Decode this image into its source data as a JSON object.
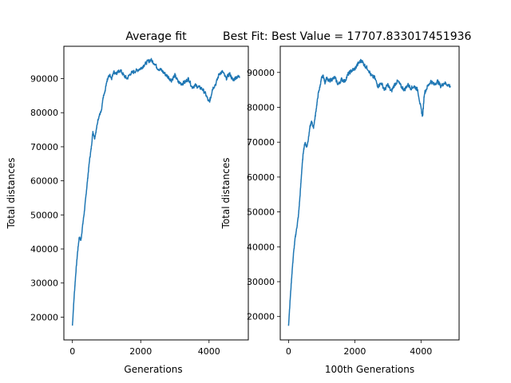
{
  "chart_data": [
    {
      "type": "line",
      "title": "Average fit",
      "xlabel": "Generations",
      "ylabel": "Total distances",
      "xlim": [
        -250,
        5150
      ],
      "ylim": [
        13300,
        99500
      ],
      "xticks": [
        0,
        2000,
        4000
      ],
      "xtick_labels": [
        "0",
        "2000",
        "4000"
      ],
      "yticks": [
        20000,
        30000,
        40000,
        50000,
        60000,
        70000,
        80000,
        90000
      ],
      "ytick_labels": [
        "20000",
        "30000",
        "40000",
        "50000",
        "60000",
        "70000",
        "80000",
        "90000"
      ],
      "grid": false,
      "series": [
        {
          "color": "#1f77b4",
          "x": [
            0,
            50,
            100,
            150,
            200,
            250,
            300,
            350,
            400,
            450,
            500,
            550,
            600,
            650,
            700,
            750,
            800,
            850,
            900,
            950,
            1000,
            1050,
            1100,
            1150,
            1200,
            1300,
            1400,
            1500,
            1600,
            1700,
            1800,
            1900,
            2000,
            2100,
            2200,
            2300,
            2400,
            2500,
            2600,
            2700,
            2800,
            2900,
            3000,
            3100,
            3200,
            3300,
            3400,
            3500,
            3600,
            3700,
            3800,
            3900,
            4000,
            4050,
            4100,
            4200,
            4300,
            4400,
            4500,
            4600,
            4700,
            4800,
            4900
          ],
          "y": [
            17500,
            26000,
            33000,
            39000,
            43500,
            42500,
            47000,
            51000,
            56000,
            61000,
            66000,
            69500,
            74500,
            72500,
            75000,
            78000,
            79500,
            80500,
            84500,
            86000,
            89000,
            90500,
            91000,
            90000,
            92000,
            91500,
            92500,
            91000,
            90000,
            91500,
            92000,
            92500,
            93000,
            94000,
            95000,
            95500,
            94500,
            93000,
            92500,
            91500,
            90500,
            89500,
            91000,
            89000,
            88500,
            89000,
            90000,
            87500,
            88000,
            87500,
            87000,
            85500,
            83000,
            84500,
            87000,
            88500,
            91500,
            92000,
            90000,
            91500,
            89500,
            90500,
            90500
          ]
        }
      ]
    },
    {
      "type": "line",
      "title": "Best Fit: Best Value = 17707.833017451936",
      "xlabel": "100th Generations",
      "ylabel": "Total distances",
      "xlim": [
        -250,
        5150
      ],
      "ylim": [
        13300,
        97500
      ],
      "xticks": [
        0,
        2000,
        4000
      ],
      "xtick_labels": [
        "0",
        "2000",
        "4000"
      ],
      "yticks": [
        20000,
        30000,
        40000,
        50000,
        60000,
        70000,
        80000,
        90000
      ],
      "ytick_labels": [
        "20000",
        "30000",
        "40000",
        "50000",
        "60000",
        "70000",
        "80000",
        "90000"
      ],
      "grid": false,
      "series": [
        {
          "color": "#1f77b4",
          "x": [
            0,
            50,
            100,
            150,
            200,
            250,
            300,
            350,
            400,
            450,
            500,
            550,
            600,
            650,
            700,
            750,
            800,
            850,
            900,
            950,
            1000,
            1050,
            1100,
            1150,
            1200,
            1300,
            1400,
            1500,
            1600,
            1700,
            1800,
            1900,
            2000,
            2100,
            2200,
            2300,
            2400,
            2500,
            2600,
            2700,
            2800,
            2900,
            3000,
            3100,
            3200,
            3300,
            3400,
            3500,
            3600,
            3700,
            3800,
            3900,
            4000,
            4050,
            4100,
            4200,
            4300,
            4400,
            4500,
            4600,
            4700,
            4800,
            4900
          ],
          "y": [
            17500,
            25000,
            32000,
            38000,
            42500,
            45500,
            49000,
            55000,
            62000,
            67500,
            70000,
            68500,
            71000,
            74500,
            76000,
            74000,
            77000,
            80500,
            84000,
            86000,
            88500,
            89000,
            87000,
            88500,
            87500,
            88000,
            88500,
            86500,
            88000,
            87500,
            89500,
            90500,
            91000,
            92500,
            93500,
            92000,
            91000,
            89000,
            88500,
            86000,
            87000,
            85000,
            86500,
            84500,
            86500,
            87500,
            86000,
            85000,
            86500,
            85500,
            86000,
            85000,
            79500,
            77500,
            84000,
            86000,
            87500,
            86500,
            87500,
            86000,
            87000,
            86500,
            86000
          ]
        }
      ]
    }
  ]
}
